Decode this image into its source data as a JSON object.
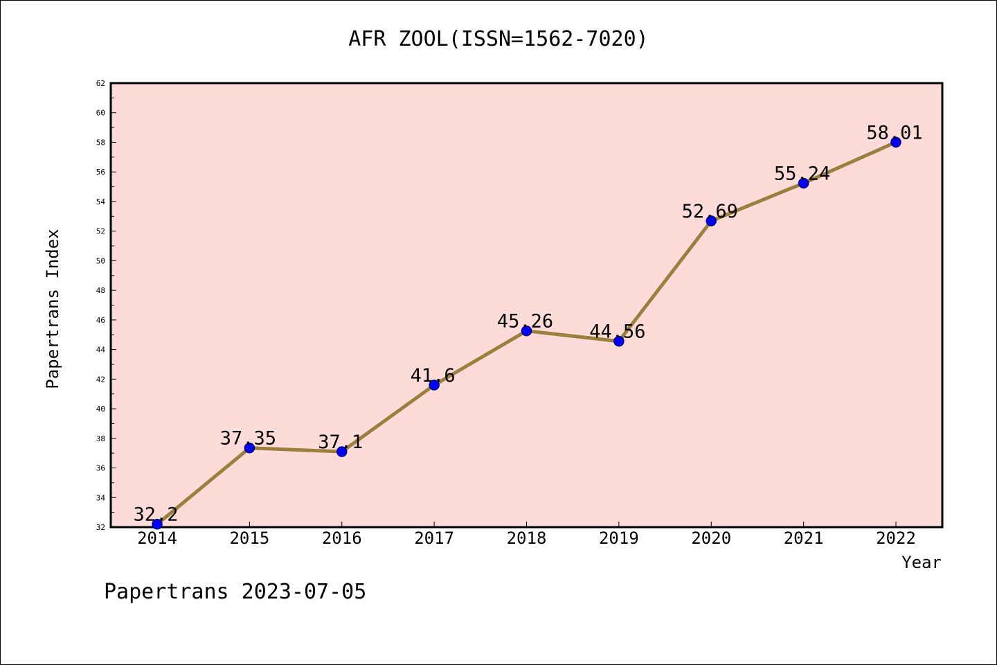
{
  "chart_data": {
    "type": "line",
    "title": "AFR ZOOL(ISSN=1562-7020)",
    "xlabel": "Year",
    "ylabel": "Papertrans Index",
    "x": [
      "2014",
      "2015",
      "2016",
      "2017",
      "2018",
      "2019",
      "2020",
      "2021",
      "2022"
    ],
    "values": [
      32.2,
      37.35,
      37.1,
      41.6,
      45.26,
      44.56,
      52.69,
      55.24,
      58.01
    ],
    "data_labels": [
      "32.2",
      "37.35",
      "37.1",
      "41.6",
      "45.26",
      "44.56",
      "52.69",
      "55.24",
      "58.01"
    ],
    "ylim": [
      32,
      62
    ],
    "yticks": [
      "32",
      "34",
      "36",
      "38",
      "40",
      "42",
      "44",
      "46",
      "48",
      "50",
      "52",
      "54",
      "56",
      "58",
      "60",
      "62"
    ],
    "footer": "Papertrans 2023-07-05",
    "grid": false,
    "colors": {
      "plot_background": "#fddbd9",
      "line": "#9b7f3c",
      "marker_fill": "#0000ff",
      "marker_edge": "#00007a",
      "axis": "#000000"
    }
  }
}
